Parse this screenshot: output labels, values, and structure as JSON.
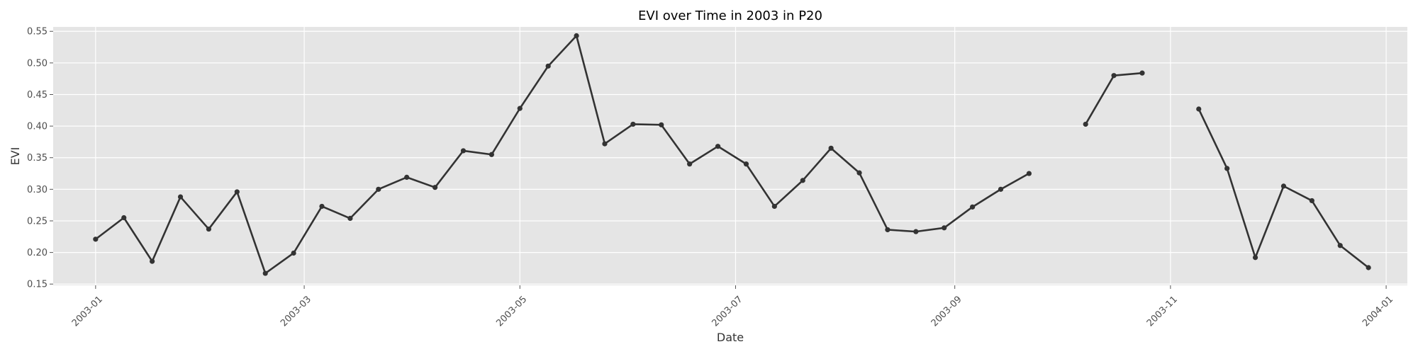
{
  "chart_data": {
    "type": "line",
    "title": "EVI over Time in 2003 in P20",
    "xlabel": "Date",
    "ylabel": "EVI",
    "x_type": "date",
    "xlim": [
      "2002-12-20",
      "2004-01-07"
    ],
    "ylim": [
      0.148,
      0.557
    ],
    "x_ticks": [
      "2003-01-01",
      "2003-03-01",
      "2003-05-01",
      "2003-07-01",
      "2003-09-01",
      "2003-11-01",
      "2004-01-01"
    ],
    "x_tick_labels": [
      "2003-01",
      "2003-03",
      "2003-05",
      "2003-07",
      "2003-09",
      "2003-11",
      "2004-01"
    ],
    "y_ticks": [
      0.15,
      0.2,
      0.25,
      0.3,
      0.35,
      0.4,
      0.45,
      0.5,
      0.55
    ],
    "y_tick_labels": [
      "0.15",
      "0.20",
      "0.25",
      "0.30",
      "0.35",
      "0.40",
      "0.45",
      "0.50",
      "0.55"
    ],
    "grid": true,
    "style": "ggplot",
    "colors": {
      "background": "#e5e5e5",
      "grid": "#ffffff",
      "line": "#333333"
    },
    "series": [
      {
        "x": [
          "2003-01-01",
          "2003-01-09",
          "2003-01-17",
          "2003-01-25",
          "2003-02-02",
          "2003-02-10",
          "2003-02-18",
          "2003-02-26",
          "2003-03-06",
          "2003-03-14",
          "2003-03-22",
          "2003-03-30",
          "2003-04-07",
          "2003-04-15",
          "2003-04-23",
          "2003-05-01",
          "2003-05-09",
          "2003-05-17",
          "2003-05-25",
          "2003-06-02",
          "2003-06-10",
          "2003-06-18",
          "2003-06-26",
          "2003-07-04",
          "2003-07-12",
          "2003-07-20",
          "2003-07-28",
          "2003-08-05",
          "2003-08-13",
          "2003-08-21",
          "2003-08-29",
          "2003-09-06",
          "2003-09-14",
          "2003-09-22",
          "2003-09-30",
          "2003-10-08",
          "2003-10-16",
          "2003-10-24",
          "2003-11-01",
          "2003-11-09",
          "2003-11-17",
          "2003-11-25",
          "2003-12-03",
          "2003-12-11",
          "2003-12-19",
          "2003-12-27"
        ],
        "y": [
          0.221,
          0.255,
          0.186,
          0.288,
          0.237,
          0.296,
          0.167,
          0.199,
          0.273,
          0.254,
          0.3,
          0.319,
          0.303,
          0.361,
          0.355,
          0.428,
          0.495,
          0.543,
          0.372,
          0.403,
          0.402,
          0.34,
          0.368,
          0.34,
          0.273,
          0.314,
          0.365,
          0.326,
          0.236,
          0.233,
          0.239,
          0.272,
          0.3,
          0.325,
          null,
          0.403,
          0.48,
          0.484,
          null,
          0.427,
          0.333,
          0.192,
          0.305,
          0.282,
          0.211,
          0.176
        ]
      }
    ]
  }
}
